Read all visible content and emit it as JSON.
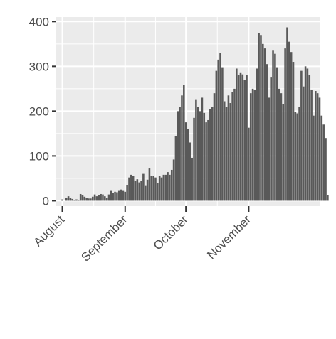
{
  "chart_data": {
    "type": "bar",
    "title": "",
    "xlabel": "",
    "ylabel": "",
    "x_axis": {
      "type": "date",
      "range": [
        "2020-07-29",
        "2020-12-06"
      ],
      "tick_dates": [
        "2020-08-01",
        "2020-09-01",
        "2020-10-01",
        "2020-11-01"
      ],
      "tick_labels": [
        "August",
        "September",
        "October",
        "November"
      ]
    },
    "y_axis": {
      "range": [
        -12,
        410
      ],
      "tick_values": [
        0,
        100,
        200,
        300,
        400
      ],
      "tick_labels": [
        "0",
        "100",
        "200",
        "300",
        "400"
      ]
    },
    "grid": true,
    "colors": {
      "bar": "#595959",
      "panel_background": "#ebebeb",
      "grid": "#ffffff",
      "text": "#4d4d4d",
      "axis_ticks": "#333333"
    },
    "series": [
      {
        "start_date": "2020-08-01",
        "values": [
          3,
          0,
          6,
          10,
          7,
          4,
          2,
          3,
          2,
          15,
          12,
          9,
          6,
          5,
          5,
          9,
          14,
          10,
          12,
          15,
          14,
          10,
          7,
          14,
          22,
          18,
          20,
          19,
          22,
          25,
          22,
          20,
          35,
          52,
          58,
          55,
          45,
          48,
          41,
          44,
          60,
          33,
          47,
          72,
          56,
          55,
          52,
          40,
          55,
          52,
          58,
          58,
          64,
          58,
          69,
          92,
          145,
          200,
          210,
          235,
          258,
          175,
          160,
          130,
          95,
          185,
          225,
          210,
          200,
          230,
          196,
          175,
          180,
          205,
          210,
          240,
          290,
          315,
          330,
          298,
          222,
          210,
          235,
          218,
          243,
          250,
          295,
          280,
          285,
          282,
          270,
          280,
          163,
          240,
          250,
          248,
          295,
          375,
          370,
          350,
          340,
          305,
          230,
          275,
          335,
          328,
          298,
          250,
          240,
          215,
          340,
          387,
          355,
          332,
          310,
          198,
          195,
          210,
          290,
          255,
          300,
          295,
          280,
          248,
          190,
          245,
          240,
          230,
          190,
          170,
          140,
          12
        ]
      }
    ]
  }
}
